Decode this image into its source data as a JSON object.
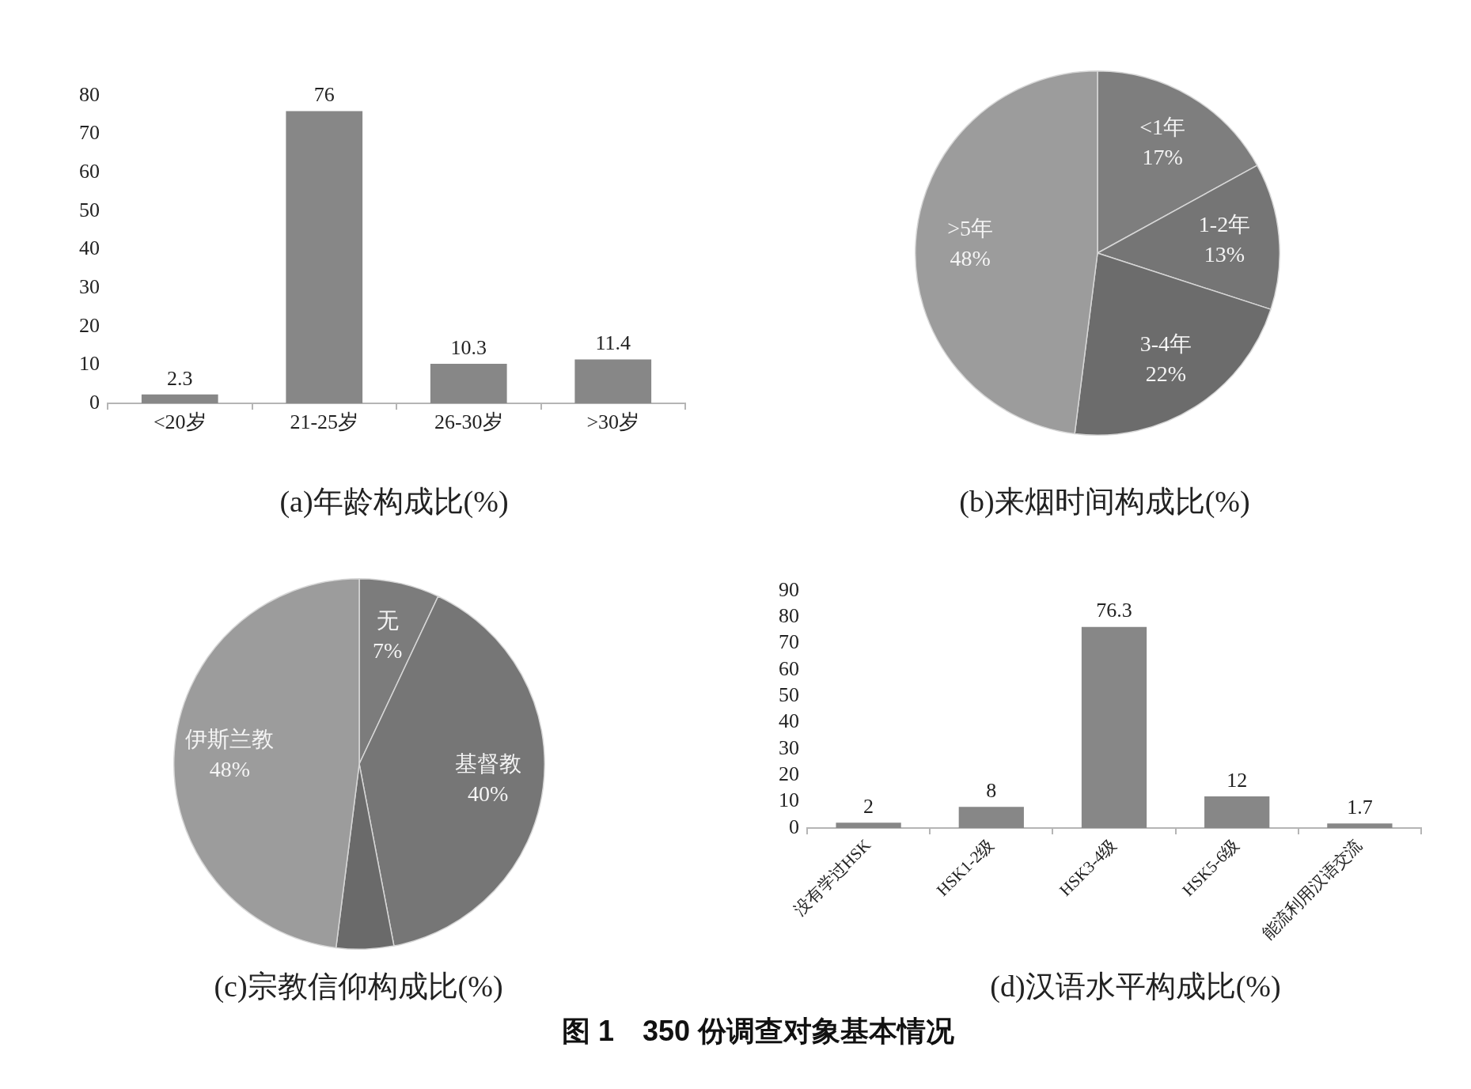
{
  "chart_data": [
    {
      "type": "bar",
      "title": "(a)年龄构成比(%)",
      "categories": [
        "<20岁",
        "21-25岁",
        "26-30岁",
        ">30岁"
      ],
      "values": [
        2.3,
        76,
        10.3,
        11.4
      ],
      "color": "#878787",
      "ylim": [
        0,
        80
      ],
      "yticks": [
        0,
        10,
        20,
        30,
        40,
        50,
        60,
        70,
        80
      ],
      "data_labels": true
    },
    {
      "type": "pie",
      "title": "(b)来烟时间构成比(%)",
      "categories": [
        "<1年",
        "1-2年",
        "3-4年",
        ">5年"
      ],
      "values": [
        17,
        13,
        22,
        48
      ],
      "colors": [
        "#7e7e7e",
        "#757575",
        "#6c6c6c",
        "#9c9c9c"
      ],
      "value_labels": [
        "17%",
        "13%",
        "22%",
        "48%"
      ]
    },
    {
      "type": "pie",
      "title": "(c)宗教信仰构成比(%)",
      "categories": [
        "无",
        "基督教",
        null,
        "伊斯兰教"
      ],
      "values": [
        7,
        40,
        5,
        48
      ],
      "colors": [
        "#7c7c7c",
        "#767676",
        "#6a6a6a",
        "#9c9c9c"
      ],
      "value_labels": [
        "7%",
        "40%",
        null,
        "48%"
      ]
    },
    {
      "type": "bar",
      "title": "(d)汉语水平构成比(%)",
      "categories": [
        "没有学过HSK",
        "HSK1-2级",
        "HSK3-4级",
        "HSK5-6级",
        "能流利用汉语交流"
      ],
      "values": [
        2,
        8,
        76.3,
        12,
        1.7
      ],
      "color": "#878787",
      "ylim": [
        0,
        90
      ],
      "yticks": [
        0,
        10,
        20,
        30,
        40,
        50,
        60,
        70,
        80,
        90
      ],
      "data_labels": true,
      "annotations": [
        "图 1　350 份调查对象基本情况"
      ]
    }
  ]
}
